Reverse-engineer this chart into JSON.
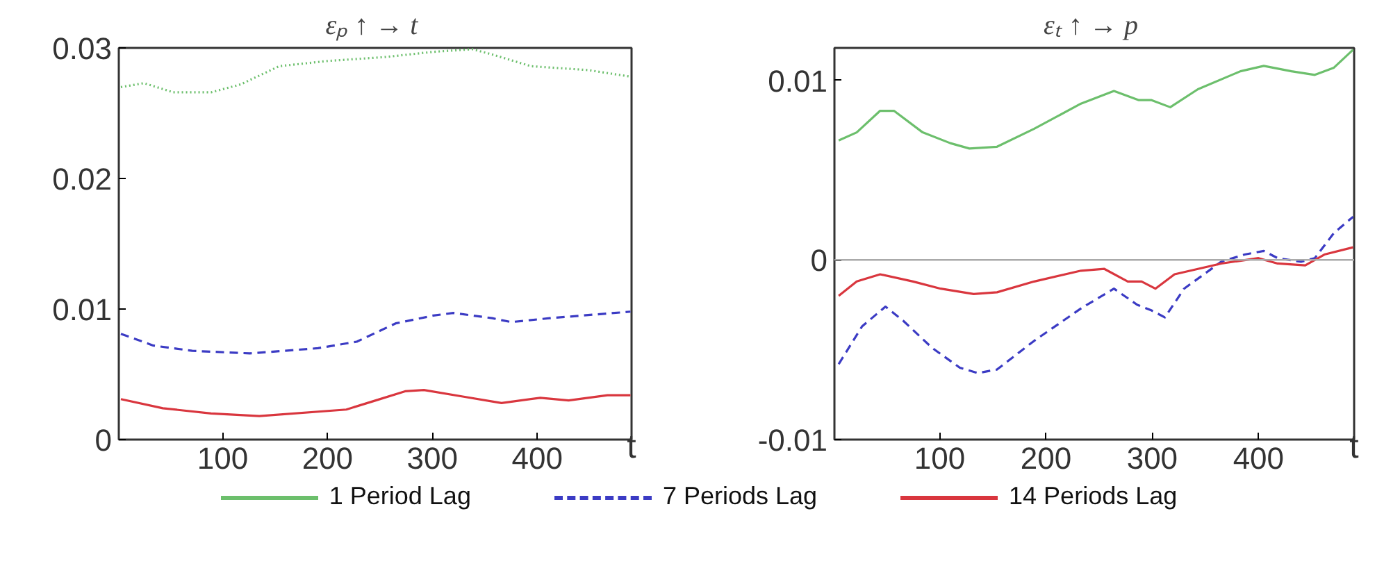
{
  "chart_data": [
    {
      "type": "line",
      "title": "εₚ ↑ →  t",
      "xlabel": "t",
      "xlim": [
        1,
        490
      ],
      "xticks": [
        100,
        200,
        300,
        400
      ],
      "ylim": [
        0,
        0.03
      ],
      "yticks": [
        0,
        0.01,
        0.02,
        0.03
      ],
      "grid": false,
      "legend": false,
      "series": [
        {
          "color": "#6cbf6c",
          "line_style": "dotted",
          "x": [
            3,
            25,
            53,
            89,
            117,
            154,
            200,
            255,
            301,
            338,
            357,
            394,
            449,
            489
          ],
          "values": [
            0.027,
            0.0273,
            0.0266,
            0.0266,
            0.0272,
            0.0286,
            0.029,
            0.0293,
            0.0297,
            0.0299,
            0.0295,
            0.0286,
            0.0283,
            0.0278
          ]
        },
        {
          "color": "#3b3bc4",
          "line_style": "dashed",
          "x": [
            3,
            34,
            71,
            126,
            191,
            228,
            265,
            301,
            320,
            357,
            375,
            412,
            489
          ],
          "values": [
            0.0081,
            0.0072,
            0.0068,
            0.0066,
            0.007,
            0.0075,
            0.0089,
            0.0095,
            0.0097,
            0.0093,
            0.009,
            0.0093,
            0.0098
          ]
        },
        {
          "color": "#d9363e",
          "line_style": "solid",
          "x": [
            3,
            43,
            89,
            135,
            218,
            246,
            274,
            292,
            329,
            366,
            403,
            430,
            467,
            489
          ],
          "values": [
            0.0031,
            0.0024,
            0.002,
            0.0018,
            0.0023,
            0.003,
            0.0037,
            0.0038,
            0.0033,
            0.0028,
            0.0032,
            0.003,
            0.0034,
            0.0034
          ]
        }
      ]
    },
    {
      "type": "line",
      "title": "εₜ ↑ →  p",
      "xlabel": "t",
      "xlim": [
        1,
        490
      ],
      "xticks": [
        100,
        200,
        300,
        400
      ],
      "ylim": [
        -0.01,
        0.0118
      ],
      "yticks": [
        -0.01,
        0,
        0.01
      ],
      "grid": false,
      "legend": "bottom",
      "ref_lines": [
        {
          "axis": "y",
          "value": 0,
          "color": "#aaaaaa"
        }
      ],
      "series": [
        {
          "name": "1 Period Lag",
          "color": "#6cbf6c",
          "line_style": "solid",
          "x": [
            5,
            22,
            44,
            57,
            84,
            110,
            128,
            154,
            189,
            233,
            264,
            287,
            299,
            317,
            343,
            383,
            405,
            431,
            453,
            471,
            489
          ],
          "values": [
            0.00665,
            0.0071,
            0.0083,
            0.0083,
            0.0071,
            0.0065,
            0.0062,
            0.0063,
            0.0073,
            0.0087,
            0.0094,
            0.0089,
            0.0089,
            0.0085,
            0.0095,
            0.0105,
            0.0108,
            0.0105,
            0.0103,
            0.0107,
            0.0117
          ]
        },
        {
          "name": "7 Periods Lag",
          "color": "#3b3bc4",
          "line_style": "dashed",
          "x": [
            5,
            27,
            49,
            66,
            93,
            119,
            136,
            154,
            189,
            233,
            264,
            286,
            299,
            312,
            330,
            365,
            387,
            405,
            418,
            440,
            453,
            471,
            489
          ],
          "values": [
            -0.0058,
            -0.0037,
            -0.0026,
            -0.0034,
            -0.0049,
            -0.006,
            -0.0063,
            -0.0061,
            -0.0045,
            -0.0027,
            -0.0016,
            -0.0025,
            -0.0028,
            -0.0032,
            -0.0016,
            -0.0001,
            0.0003,
            0.0005,
            0.0001,
            -0.0001,
            0.0001,
            0.0015,
            0.0024
          ]
        },
        {
          "name": "14 Periods Lag",
          "color": "#d9363e",
          "line_style": "solid",
          "x": [
            5,
            22,
            44,
            75,
            101,
            132,
            154,
            189,
            233,
            255,
            277,
            290,
            303,
            321,
            365,
            400,
            418,
            444,
            462,
            489
          ],
          "values": [
            -0.002,
            -0.0012,
            -0.0008,
            -0.0012,
            -0.0016,
            -0.0019,
            -0.0018,
            -0.0012,
            -0.0006,
            -0.0005,
            -0.0012,
            -0.0012,
            -0.0016,
            -0.0008,
            -0.0002,
            0.0001,
            -0.0002,
            -0.0003,
            0.0003,
            0.0007
          ]
        }
      ]
    }
  ]
}
